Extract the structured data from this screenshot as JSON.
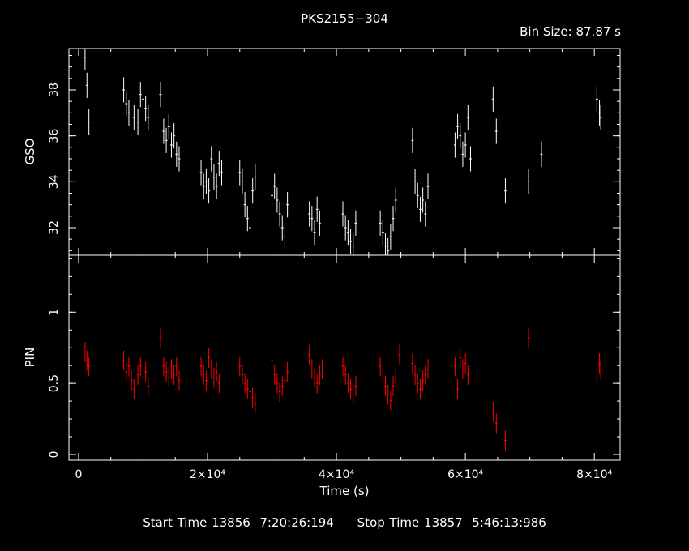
{
  "header": {
    "title": "PKS2155−304",
    "bin_size": "Bin Size: 87.87 s"
  },
  "footer": {
    "text": "Start Time 13856  7:20:26:194     Stop Time 13857  5:46:13:986"
  },
  "colors": {
    "background": "#000000",
    "axes": "#ffffff",
    "gso": "#ffffff",
    "pin": "#ff0000"
  },
  "chart_data": [
    {
      "type": "scatter",
      "panel": "top",
      "ylabel": "GSO",
      "xlabel": "",
      "xlim": [
        -1500,
        84000
      ],
      "ylim": [
        30.8,
        39.8
      ],
      "yticks": [
        32,
        34,
        36,
        38
      ],
      "ytick_labels": [
        "32",
        "34",
        "36",
        "38"
      ],
      "series": [
        {
          "points": [
            [
              1000,
              39.4
            ],
            [
              1300,
              38.2
            ],
            [
              1600,
              36.6
            ],
            [
              7000,
              38.0
            ],
            [
              7400,
              37.4
            ],
            [
              7800,
              37.0
            ],
            [
              8600,
              36.8
            ],
            [
              9200,
              36.6
            ],
            [
              9600,
              37.8
            ],
            [
              10000,
              37.6
            ],
            [
              10400,
              37.2
            ],
            [
              10800,
              36.8
            ],
            [
              12700,
              37.8
            ],
            [
              13200,
              36.2
            ],
            [
              13600,
              35.8
            ],
            [
              14000,
              36.4
            ],
            [
              14400,
              35.6
            ],
            [
              14800,
              36.0
            ],
            [
              15200,
              35.2
            ],
            [
              15600,
              35.0
            ],
            [
              19000,
              34.4
            ],
            [
              19400,
              33.8
            ],
            [
              19800,
              34.0
            ],
            [
              20200,
              33.6
            ],
            [
              20600,
              35.0
            ],
            [
              21000,
              34.2
            ],
            [
              21400,
              33.8
            ],
            [
              21800,
              34.8
            ],
            [
              22200,
              34.4
            ],
            [
              25000,
              34.4
            ],
            [
              25400,
              34.0
            ],
            [
              25800,
              33.0
            ],
            [
              26200,
              32.4
            ],
            [
              26600,
              32.0
            ],
            [
              27000,
              33.6
            ],
            [
              27400,
              34.2
            ],
            [
              30000,
              33.4
            ],
            [
              30400,
              33.8
            ],
            [
              30800,
              33.2
            ],
            [
              31200,
              32.6
            ],
            [
              31600,
              32.0
            ],
            [
              32000,
              31.6
            ],
            [
              32400,
              33.0
            ],
            [
              35800,
              32.6
            ],
            [
              36200,
              32.4
            ],
            [
              36600,
              31.8
            ],
            [
              37000,
              32.8
            ],
            [
              37400,
              32.2
            ],
            [
              41000,
              32.6
            ],
            [
              41400,
              32.0
            ],
            [
              41800,
              31.8
            ],
            [
              42200,
              31.4
            ],
            [
              42600,
              31.2
            ],
            [
              43000,
              32.2
            ],
            [
              46800,
              32.2
            ],
            [
              47200,
              31.8
            ],
            [
              47600,
              31.2
            ],
            [
              48000,
              31.0
            ],
            [
              48400,
              31.6
            ],
            [
              48800,
              32.4
            ],
            [
              49200,
              33.2
            ],
            [
              51800,
              35.8
            ],
            [
              52200,
              34.0
            ],
            [
              52600,
              33.4
            ],
            [
              53000,
              32.8
            ],
            [
              53400,
              33.2
            ],
            [
              53800,
              32.6
            ],
            [
              54200,
              33.8
            ],
            [
              58400,
              35.6
            ],
            [
              58800,
              36.4
            ],
            [
              59200,
              36.0
            ],
            [
              59600,
              35.2
            ],
            [
              60000,
              35.6
            ],
            [
              60400,
              36.8
            ],
            [
              60800,
              35.0
            ],
            [
              64300,
              37.6
            ],
            [
              64800,
              36.2
            ],
            [
              66200,
              33.6
            ],
            [
              69800,
              34.0
            ],
            [
              71800,
              35.2
            ],
            [
              80400,
              37.6
            ],
            [
              80800,
              37.0
            ],
            [
              81000,
              36.8
            ]
          ]
        }
      ]
    },
    {
      "type": "scatter",
      "panel": "bottom",
      "ylabel": "PIN",
      "xlabel": "Time (s)",
      "xlim": [
        -1500,
        84000
      ],
      "ylim": [
        -0.04,
        1.4
      ],
      "yticks": [
        0,
        0.5,
        1
      ],
      "ytick_labels": [
        "0",
        "0.5",
        "1"
      ],
      "xticks": [
        0,
        20000,
        40000,
        60000,
        80000
      ],
      "xtick_labels": [
        "0",
        "2×10⁴",
        "4×10⁴",
        "6×10⁴",
        "8×10⁴"
      ],
      "series": [
        {
          "points": [
            [
              1000,
              0.72
            ],
            [
              1300,
              0.66
            ],
            [
              1600,
              0.62
            ],
            [
              7000,
              0.66
            ],
            [
              7400,
              0.58
            ],
            [
              7800,
              0.62
            ],
            [
              8200,
              0.52
            ],
            [
              8600,
              0.46
            ],
            [
              9200,
              0.56
            ],
            [
              9600,
              0.62
            ],
            [
              10000,
              0.54
            ],
            [
              10400,
              0.58
            ],
            [
              10800,
              0.48
            ],
            [
              12700,
              0.82
            ],
            [
              13200,
              0.62
            ],
            [
              13600,
              0.58
            ],
            [
              14000,
              0.54
            ],
            [
              14400,
              0.6
            ],
            [
              14800,
              0.56
            ],
            [
              15200,
              0.62
            ],
            [
              15600,
              0.52
            ],
            [
              19000,
              0.62
            ],
            [
              19400,
              0.56
            ],
            [
              19800,
              0.52
            ],
            [
              20200,
              0.68
            ],
            [
              20600,
              0.6
            ],
            [
              21000,
              0.54
            ],
            [
              21400,
              0.58
            ],
            [
              21800,
              0.5
            ],
            [
              25000,
              0.62
            ],
            [
              25400,
              0.56
            ],
            [
              25800,
              0.5
            ],
            [
              26200,
              0.46
            ],
            [
              26600,
              0.44
            ],
            [
              27000,
              0.4
            ],
            [
              27400,
              0.36
            ],
            [
              30000,
              0.66
            ],
            [
              30400,
              0.56
            ],
            [
              30800,
              0.5
            ],
            [
              31200,
              0.44
            ],
            [
              31600,
              0.48
            ],
            [
              32000,
              0.52
            ],
            [
              32400,
              0.58
            ],
            [
              35800,
              0.7
            ],
            [
              36200,
              0.6
            ],
            [
              36600,
              0.54
            ],
            [
              37000,
              0.5
            ],
            [
              37400,
              0.56
            ],
            [
              37800,
              0.6
            ],
            [
              41000,
              0.62
            ],
            [
              41400,
              0.56
            ],
            [
              41800,
              0.5
            ],
            [
              42200,
              0.46
            ],
            [
              42600,
              0.42
            ],
            [
              43000,
              0.48
            ],
            [
              46800,
              0.62
            ],
            [
              47200,
              0.54
            ],
            [
              47600,
              0.48
            ],
            [
              48000,
              0.42
            ],
            [
              48400,
              0.38
            ],
            [
              48800,
              0.48
            ],
            [
              49200,
              0.54
            ],
            [
              49800,
              0.7
            ],
            [
              51800,
              0.64
            ],
            [
              52200,
              0.56
            ],
            [
              52600,
              0.5
            ],
            [
              53000,
              0.46
            ],
            [
              53400,
              0.52
            ],
            [
              53800,
              0.56
            ],
            [
              54200,
              0.6
            ],
            [
              58400,
              0.62
            ],
            [
              58800,
              0.46
            ],
            [
              59200,
              0.68
            ],
            [
              59600,
              0.6
            ],
            [
              60000,
              0.64
            ],
            [
              60400,
              0.56
            ],
            [
              64300,
              0.3
            ],
            [
              64800,
              0.22
            ],
            [
              66200,
              0.1
            ],
            [
              69800,
              0.82
            ],
            [
              80400,
              0.54
            ],
            [
              80800,
              0.64
            ],
            [
              81000,
              0.6
            ]
          ]
        }
      ]
    }
  ]
}
